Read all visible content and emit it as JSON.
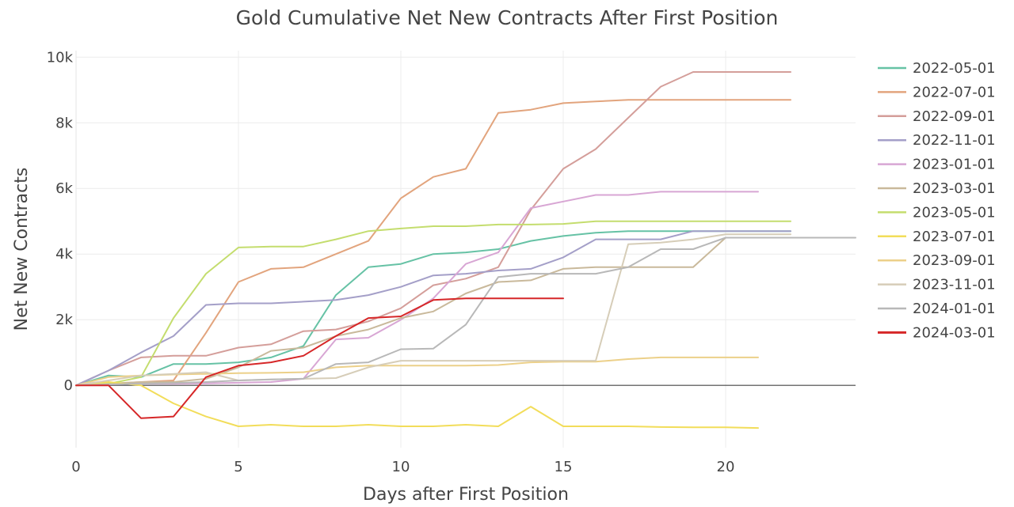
{
  "chart_data": {
    "type": "line",
    "title": "Gold Cumulative Net New Contracts After First Position",
    "xlabel": "Days after First Position",
    "ylabel": "Net New Contracts",
    "xlim": [
      0,
      24
    ],
    "ylim": [
      -1900,
      10200
    ],
    "x_ticks": [
      0,
      5,
      10,
      15,
      20
    ],
    "x_tick_labels": [
      "0",
      "5",
      "10",
      "15",
      "20"
    ],
    "y_ticks": [
      0,
      2000,
      4000,
      6000,
      8000,
      10000
    ],
    "y_tick_labels": [
      "0",
      "2k",
      "4k",
      "6k",
      "8k",
      "10k"
    ],
    "grid": true,
    "legend_position": "right",
    "series": [
      {
        "name": "2022-05-01",
        "color": "#66c2a5",
        "x": [
          0,
          1,
          2,
          3,
          4,
          5,
          6,
          7,
          8,
          9,
          10,
          11,
          12,
          13,
          14,
          15,
          16,
          17,
          18,
          19,
          20,
          21,
          22
        ],
        "y": [
          0,
          300,
          250,
          650,
          650,
          700,
          850,
          1200,
          2750,
          3600,
          3700,
          4000,
          4050,
          4150,
          4400,
          4550,
          4650,
          4700,
          4700,
          4700,
          4700,
          4700,
          4700
        ]
      },
      {
        "name": "2022-07-01",
        "color": "#e2a47d",
        "x": [
          0,
          1,
          2,
          3,
          4,
          5,
          6,
          7,
          8,
          9,
          10,
          11,
          12,
          13,
          14,
          15,
          16,
          17,
          18,
          19,
          20,
          21,
          22
        ],
        "y": [
          0,
          50,
          100,
          150,
          1600,
          3150,
          3550,
          3600,
          4000,
          4400,
          5700,
          6350,
          6600,
          8300,
          8400,
          8600,
          8650,
          8700,
          8700,
          8700,
          8700,
          8700,
          8700
        ]
      },
      {
        "name": "2022-09-01",
        "color": "#d49e9a",
        "x": [
          0,
          1,
          2,
          3,
          4,
          5,
          6,
          7,
          8,
          9,
          10,
          11,
          12,
          13,
          14,
          15,
          16,
          17,
          18,
          19,
          20,
          21,
          22
        ],
        "y": [
          0,
          450,
          850,
          900,
          900,
          1150,
          1250,
          1650,
          1700,
          1950,
          2350,
          3050,
          3250,
          3600,
          5350,
          6600,
          7200,
          8150,
          9100,
          9550,
          9550,
          9550,
          9550
        ]
      },
      {
        "name": "2022-11-01",
        "color": "#a49fc8",
        "x": [
          0,
          1,
          2,
          3,
          4,
          5,
          6,
          7,
          8,
          9,
          10,
          11,
          12,
          13,
          14,
          15,
          16,
          17,
          18,
          19,
          20,
          21,
          22
        ],
        "y": [
          0,
          450,
          1000,
          1500,
          2450,
          2500,
          2500,
          2550,
          2600,
          2750,
          3000,
          3350,
          3400,
          3500,
          3550,
          3900,
          4450,
          4450,
          4450,
          4700,
          4700,
          4700,
          4700
        ]
      },
      {
        "name": "2023-01-01",
        "color": "#d8a6d4",
        "x": [
          0,
          1,
          2,
          3,
          4,
          5,
          6,
          7,
          8,
          9,
          10,
          11,
          12,
          13,
          14,
          15,
          16,
          17,
          18,
          19,
          20,
          21
        ],
        "y": [
          0,
          30,
          50,
          50,
          60,
          80,
          100,
          200,
          1400,
          1450,
          2000,
          2650,
          3700,
          4050,
          5400,
          5600,
          5800,
          5800,
          5900,
          5900,
          5900,
          5900
        ]
      },
      {
        "name": "2023-03-01",
        "color": "#c9b99b",
        "x": [
          0,
          1,
          2,
          3,
          4,
          5,
          6,
          7,
          8,
          9,
          10,
          11,
          12,
          13,
          14,
          15,
          16,
          17,
          18,
          19,
          20,
          21,
          22
        ],
        "y": [
          0,
          50,
          100,
          100,
          200,
          550,
          1050,
          1150,
          1500,
          1700,
          2050,
          2250,
          2800,
          3150,
          3200,
          3550,
          3600,
          3600,
          3600,
          3600,
          4500,
          4500,
          4500
        ]
      },
      {
        "name": "2023-05-01",
        "color": "#c4dd6e",
        "x": [
          0,
          1,
          2,
          3,
          4,
          5,
          6,
          7,
          8,
          9,
          10,
          11,
          12,
          13,
          14,
          15,
          16,
          17,
          18,
          19,
          20,
          21,
          22
        ],
        "y": [
          0,
          50,
          250,
          2050,
          3400,
          4200,
          4230,
          4230,
          4450,
          4700,
          4780,
          4850,
          4850,
          4900,
          4900,
          4920,
          5000,
          5000,
          5000,
          5000,
          5000,
          5000,
          5000
        ]
      },
      {
        "name": "2023-07-01",
        "color": "#f2dd5a",
        "x": [
          0,
          1,
          2,
          3,
          4,
          5,
          6,
          7,
          8,
          9,
          10,
          11,
          12,
          13,
          14,
          15,
          16,
          17,
          18,
          19,
          20,
          21
        ],
        "y": [
          0,
          100,
          0,
          -550,
          -950,
          -1250,
          -1200,
          -1250,
          -1250,
          -1200,
          -1250,
          -1250,
          -1200,
          -1250,
          -650,
          -1250,
          -1250,
          -1250,
          -1270,
          -1280,
          -1280,
          -1300
        ]
      },
      {
        "name": "2023-09-01",
        "color": "#ecd089",
        "x": [
          0,
          1,
          2,
          3,
          4,
          5,
          6,
          7,
          8,
          9,
          10,
          11,
          12,
          13,
          14,
          15,
          16,
          17,
          18,
          19,
          20,
          21
        ],
        "y": [
          0,
          250,
          300,
          330,
          350,
          370,
          380,
          400,
          550,
          600,
          600,
          600,
          600,
          620,
          700,
          720,
          720,
          800,
          850,
          850,
          850,
          850
        ]
      },
      {
        "name": "2023-11-01",
        "color": "#d6cdb8",
        "x": [
          0,
          1,
          2,
          3,
          4,
          5,
          6,
          7,
          8,
          9,
          10,
          11,
          12,
          13,
          14,
          15,
          16,
          17,
          18,
          19,
          20,
          21,
          22
        ],
        "y": [
          0,
          150,
          300,
          350,
          400,
          150,
          180,
          200,
          220,
          550,
          750,
          750,
          750,
          750,
          750,
          750,
          750,
          4300,
          4350,
          4450,
          4600,
          4600,
          4600
        ]
      },
      {
        "name": "2024-01-01",
        "color": "#b8b8b8",
        "x": [
          0,
          1,
          2,
          3,
          4,
          5,
          6,
          7,
          8,
          9,
          10,
          11,
          12,
          13,
          14,
          15,
          16,
          17,
          18,
          19,
          20,
          21,
          22,
          23,
          24
        ],
        "y": [
          0,
          30,
          50,
          70,
          100,
          150,
          180,
          200,
          650,
          700,
          1100,
          1120,
          1850,
          3300,
          3400,
          3400,
          3400,
          3600,
          4150,
          4150,
          4500,
          4500,
          4500,
          4500,
          4500
        ]
      },
      {
        "name": "2024-03-01",
        "color": "#d62728",
        "x": [
          0,
          1,
          2,
          3,
          4,
          5,
          6,
          7,
          8,
          9,
          10,
          11,
          12,
          13,
          14,
          15
        ],
        "y": [
          0,
          0,
          -1000,
          -950,
          250,
          600,
          700,
          900,
          1500,
          2050,
          2100,
          2600,
          2650,
          2650,
          2650,
          2650
        ]
      }
    ]
  }
}
